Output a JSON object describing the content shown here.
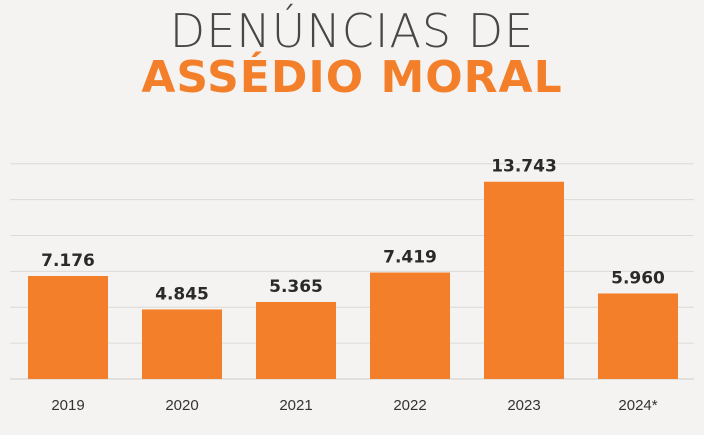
{
  "header": {
    "title_line1": "DENÚNCIAS DE",
    "title_line2": "ASSÉDIO MORAL"
  },
  "colors": {
    "bar": "#f47f2a",
    "title_accent": "#f47f2a",
    "title_dark": "#474747",
    "grid": "#dcdad6",
    "text": "#333333"
  },
  "chart_data": {
    "type": "bar",
    "title": "DENÚNCIAS DE ASSÉDIO MORAL",
    "categories": [
      "2019",
      "2020",
      "2021",
      "2022",
      "2023",
      "2024*"
    ],
    "values": [
      7176,
      4845,
      5365,
      7419,
      13743,
      5960
    ],
    "value_labels": [
      "7.176",
      "4.845",
      "5.365",
      "7.419",
      "13.743",
      "5.960"
    ],
    "xlabel": "",
    "ylabel": "",
    "ylim": [
      0,
      15000
    ],
    "grid": true,
    "legend": "none"
  }
}
